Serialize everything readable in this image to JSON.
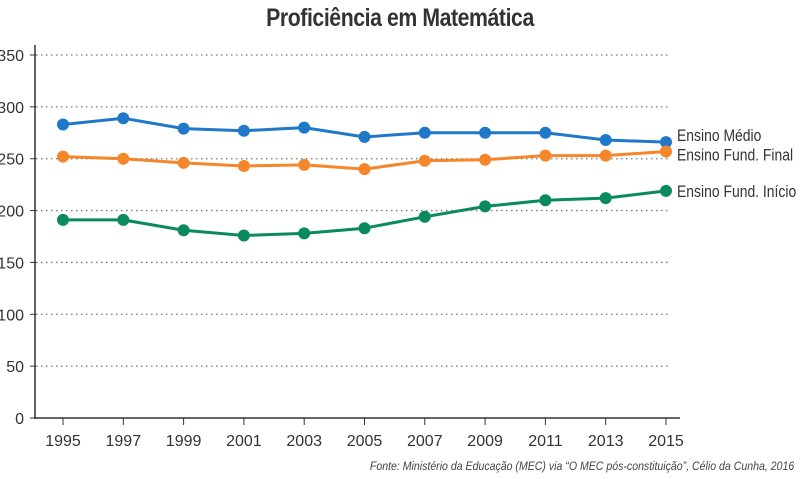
{
  "chart_data": {
    "type": "line",
    "title": "Proficiência em Matemática",
    "xlabel": "",
    "ylabel": "",
    "x": [
      "1995",
      "1997",
      "1999",
      "2001",
      "2003",
      "2005",
      "2007",
      "2009",
      "2011",
      "2013",
      "2015"
    ],
    "ylim": [
      0,
      350
    ],
    "yticks": [
      "0",
      "50",
      "100",
      "150",
      "200",
      "250",
      "300",
      "350"
    ],
    "grid": true,
    "legend": "direct labels at right end of lines",
    "series": [
      {
        "name": "Ensino Médio",
        "color": "#1f78c8",
        "values": [
          283,
          289,
          279,
          277,
          280,
          271,
          275,
          275,
          275,
          268,
          266
        ]
      },
      {
        "name": "Ensino Fund. Final",
        "color": "#f5862a",
        "values": [
          252,
          250,
          246,
          243,
          244,
          240,
          248,
          249,
          253,
          253,
          257
        ]
      },
      {
        "name": "Ensino Fund. Início",
        "color": "#0b8a5f",
        "values": [
          191,
          191,
          181,
          176,
          178,
          183,
          194,
          204,
          210,
          212,
          219
        ]
      }
    ],
    "source": "Fonte: Ministério da Educação (MEC) via “O MEC pós-constituição”, Célio da Cunha, 2016"
  }
}
